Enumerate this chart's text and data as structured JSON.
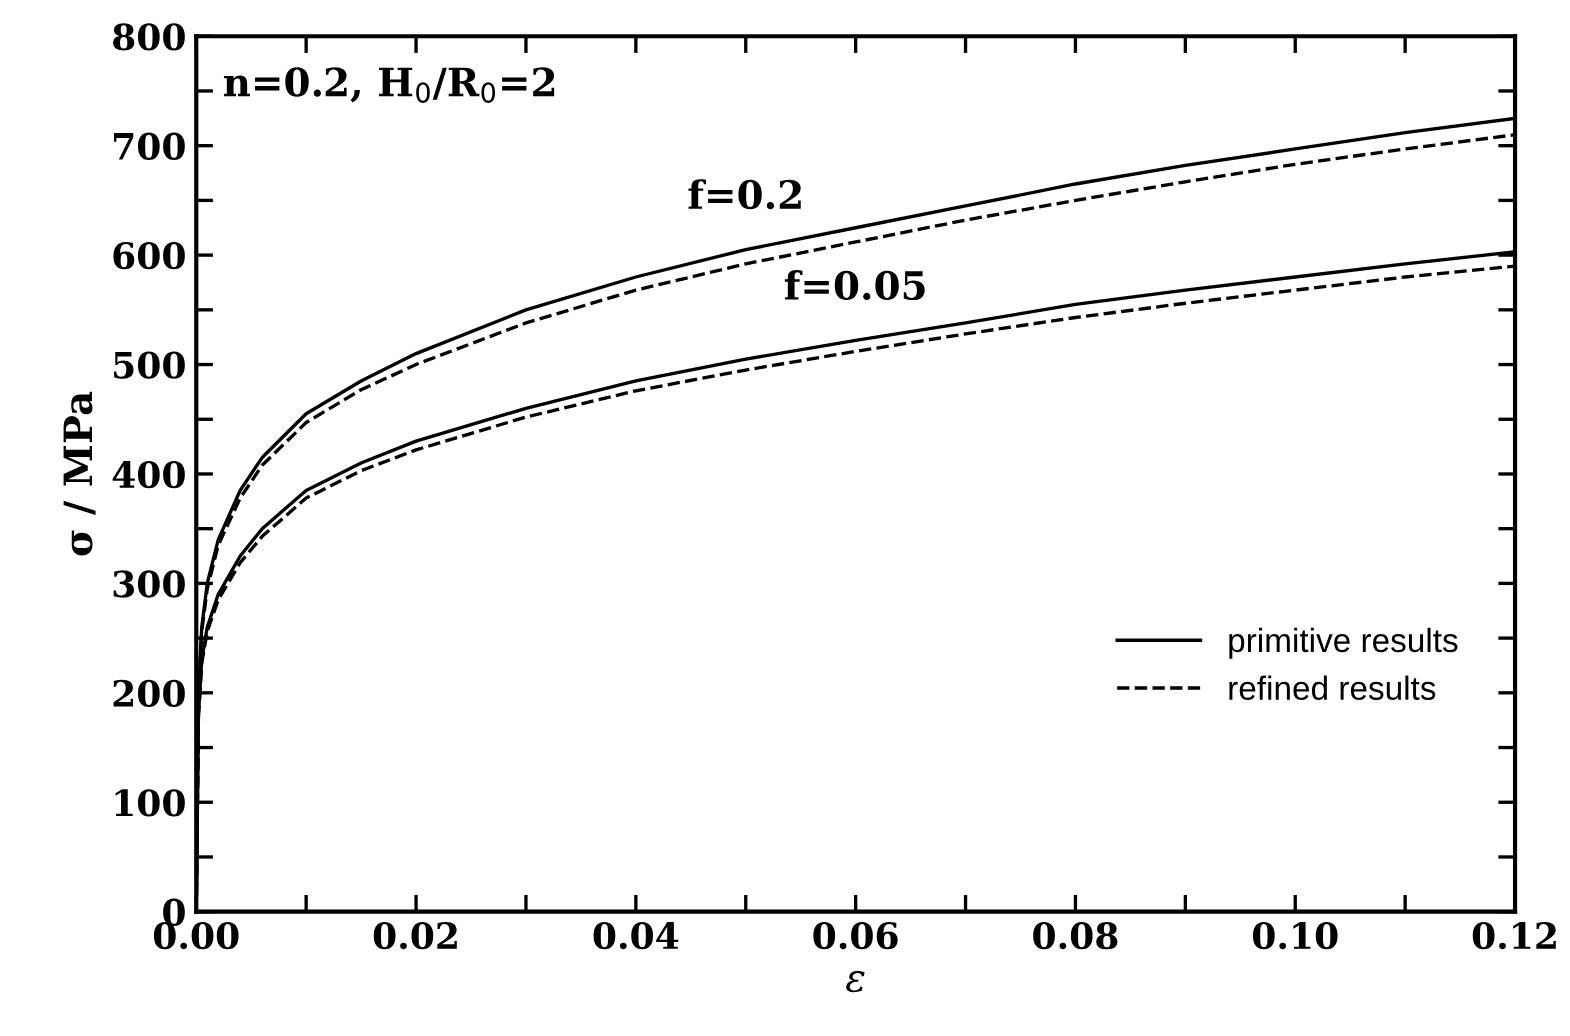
{
  "chart_data": {
    "type": "line",
    "xlabel": "ε",
    "ylabel": "σ / MPa",
    "xlim": [
      0,
      0.12
    ],
    "ylim": [
      0,
      800
    ],
    "xticks": [
      {
        "value": 0,
        "label": "0.00"
      },
      {
        "value": 0.01,
        "label": null
      },
      {
        "value": 0.02,
        "label": "0.02"
      },
      {
        "value": 0.03,
        "label": null
      },
      {
        "value": 0.04,
        "label": "0.04"
      },
      {
        "value": 0.05,
        "label": null
      },
      {
        "value": 0.06,
        "label": "0.06"
      },
      {
        "value": 0.07,
        "label": null
      },
      {
        "value": 0.08,
        "label": "0.08"
      },
      {
        "value": 0.09,
        "label": null
      },
      {
        "value": 0.1,
        "label": "0.10"
      },
      {
        "value": 0.11,
        "label": null
      },
      {
        "value": 0.12,
        "label": "0.12"
      }
    ],
    "yticks": [
      0,
      {
        "value": 50,
        "label": null
      },
      100,
      {
        "value": 150,
        "label": null
      },
      200,
      {
        "value": 250,
        "label": null
      },
      300,
      {
        "value": 350,
        "label": null
      },
      400,
      {
        "value": 450,
        "label": null
      },
      500,
      {
        "value": 550,
        "label": null
      },
      600,
      {
        "value": 650,
        "label": null
      },
      700,
      {
        "value": 750,
        "label": null
      },
      800
    ],
    "grid": false,
    "legend": "bottom right",
    "marker": "none",
    "annotations": [
      "n=0.2, H$_{0}$/R$_{0}$=2",
      {
        "text": "f=0.2",
        "x": 0.05,
        "y": 605
      },
      {
        "text": "f=0.05",
        "x": 0.06,
        "y": 522
      }
    ],
    "series": [
      {
        "name": "primitive results",
        "color": "#000000",
        "line_style": "solid",
        "x": [
          0,
          0.0002,
          0.0005,
          0.001,
          0.002,
          0.004,
          0.006,
          0.01,
          0.015,
          0.02,
          0.03,
          0.04,
          0.05,
          0.06,
          0.07,
          0.08,
          0.09,
          0.1,
          0.11,
          0.12
        ],
        "values": [
          0,
          200,
          260,
          300,
          340,
          385,
          415,
          455,
          485,
          510,
          550,
          580,
          605,
          625,
          645,
          665,
          682,
          697,
          712,
          725
        ]
      },
      {
        "name": "refined results",
        "color": "#000000",
        "line_style": "dashed",
        "x": [
          0,
          0.0002,
          0.0005,
          0.001,
          0.002,
          0.004,
          0.006,
          0.01,
          0.015,
          0.02,
          0.03,
          0.04,
          0.05,
          0.06,
          0.07,
          0.08,
          0.09,
          0.1,
          0.11,
          0.12
        ],
        "values": [
          0,
          198,
          256,
          295,
          335,
          378,
          408,
          447,
          477,
          500,
          538,
          568,
          592,
          612,
          632,
          650,
          667,
          683,
          697,
          710
        ]
      },
      {
        "color": "#000000",
        "line_style": "solid",
        "x": [
          0,
          0.0002,
          0.0005,
          0.001,
          0.002,
          0.004,
          0.006,
          0.01,
          0.015,
          0.02,
          0.03,
          0.04,
          0.05,
          0.06,
          0.07,
          0.08,
          0.09,
          0.1,
          0.11,
          0.12
        ],
        "values": [
          0,
          180,
          230,
          260,
          290,
          325,
          350,
          385,
          410,
          430,
          460,
          485,
          505,
          522,
          538,
          555,
          568,
          580,
          592,
          603
        ]
      },
      {
        "color": "#000000",
        "line_style": "dashed",
        "x": [
          0,
          0.0002,
          0.0005,
          0.001,
          0.002,
          0.004,
          0.006,
          0.01,
          0.015,
          0.02,
          0.03,
          0.04,
          0.05,
          0.06,
          0.07,
          0.08,
          0.09,
          0.1,
          0.11,
          0.12
        ],
        "values": [
          0,
          178,
          227,
          256,
          285,
          319,
          343,
          378,
          403,
          422,
          452,
          476,
          495,
          512,
          528,
          543,
          556,
          568,
          580,
          590
        ]
      }
    ]
  }
}
